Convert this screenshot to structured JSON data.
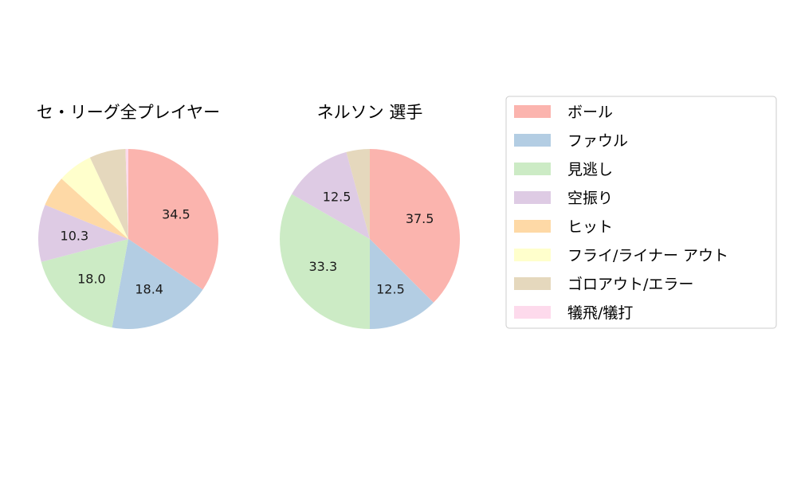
{
  "chart_data": {
    "type": "pie",
    "categories": [
      "ボール",
      "ファウル",
      "見逃し",
      "空振り",
      "ヒット",
      "フライ/ライナー アウト",
      "ゴロアウト/エラー",
      "犠飛/犠打"
    ],
    "colors": [
      "#fbb4ae",
      "#b3cde3",
      "#ccebc5",
      "#decbe4",
      "#fed9a6",
      "#ffffcc",
      "#e5d8bd",
      "#fddaec"
    ],
    "legend": "right",
    "charts": [
      {
        "title": "セ・リーグ全プレイヤー",
        "values": [
          34.5,
          18.4,
          18.0,
          10.3,
          5.5,
          6.3,
          6.5,
          0.5
        ],
        "labels": [
          "34.5",
          "18.4",
          "18.0",
          "10.3",
          "",
          "",
          "",
          ""
        ]
      },
      {
        "title": "ネルソン  選手",
        "values": [
          37.5,
          12.5,
          33.3,
          12.5,
          0,
          0,
          4.2,
          0
        ],
        "labels": [
          "37.5",
          "12.5",
          "33.3",
          "12.5",
          "",
          "",
          "",
          ""
        ]
      }
    ]
  }
}
